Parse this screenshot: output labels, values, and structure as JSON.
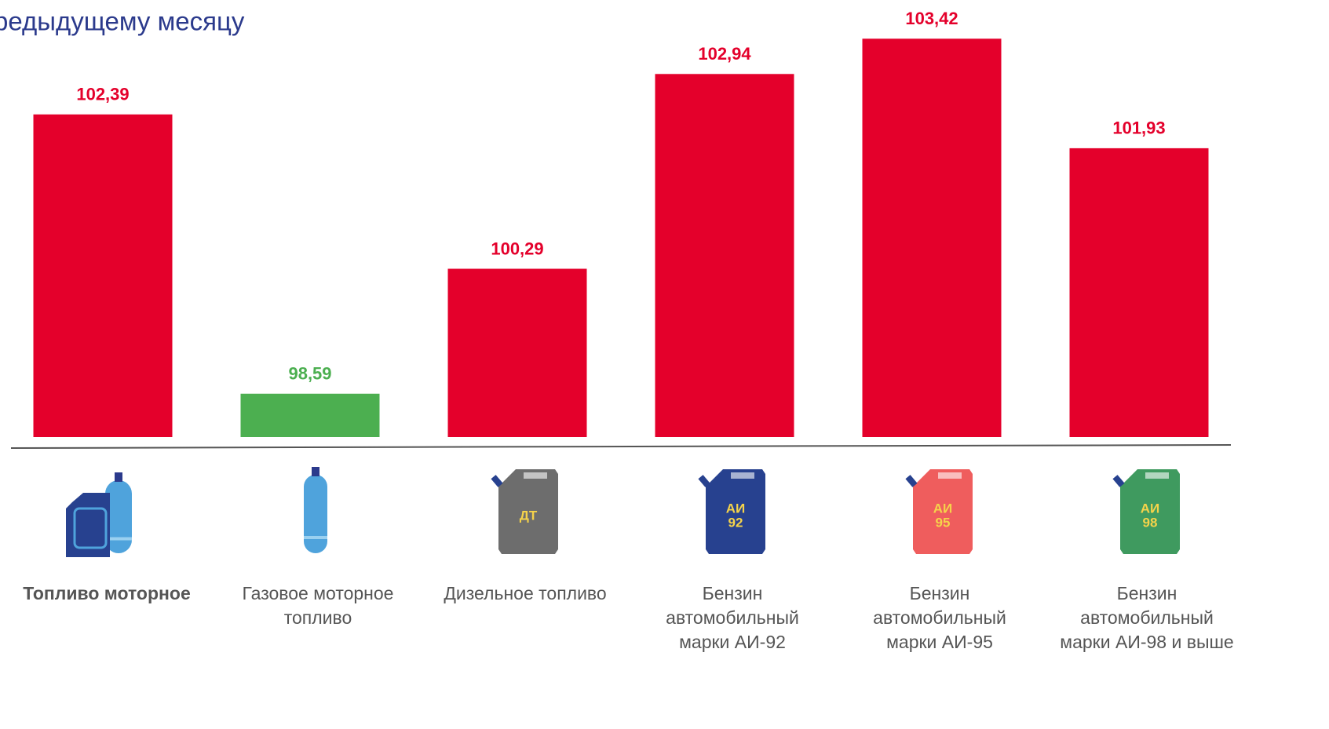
{
  "chart_data": {
    "type": "bar",
    "title": "редыдущему месяцу",
    "categories": [
      "Топливо моторное",
      "Газовое моторное топливо",
      "Дизельное топливо",
      "Бензин автомобильный марки АИ-92",
      "Бензин автомобильный марки АИ-95",
      "Бензин автомобильный марки АИ-98 и выше"
    ],
    "values": [
      102.39,
      98.59,
      100.29,
      102.94,
      103.42,
      101.93
    ],
    "value_labels": [
      "102,39",
      "98,59",
      "100,29",
      "102,94",
      "103,42",
      "101,93"
    ],
    "colors": [
      "#e4002b",
      "#4caf50",
      "#e4002b",
      "#e4002b",
      "#e4002b",
      "#e4002b"
    ],
    "ylim": [
      98,
      104
    ],
    "can_labels": [
      [
        "ДТ"
      ],
      [
        "АИ",
        "92"
      ],
      [
        "АИ",
        "95"
      ],
      [
        "АИ",
        "98"
      ]
    ]
  }
}
